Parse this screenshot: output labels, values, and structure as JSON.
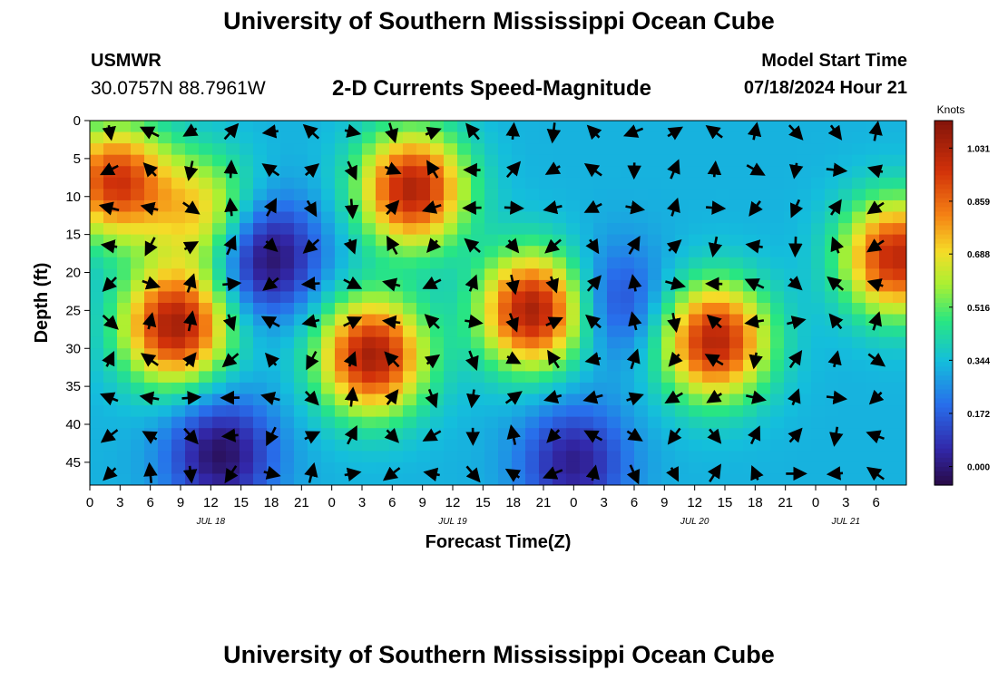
{
  "header": {
    "title": "University of Southern Mississippi Ocean Cube",
    "station": "USMWR",
    "coords": "30.0757N  88.7961W",
    "subtitle": "2-D Currents Speed-Magnitude",
    "start_label": "Model Start Time",
    "start_time": "07/18/2024 Hour 21"
  },
  "footer": {
    "title": "University of Southern Mississippi Ocean Cube"
  },
  "chart_data": {
    "type": "heatmap",
    "title": "2-D Currents Speed-Magnitude",
    "xlabel": "Forecast Time(Z)",
    "ylabel": "Depth (ft)",
    "x_range_hours": [
      0,
      81
    ],
    "y_range_ft": [
      0,
      48
    ],
    "x_ticks": [
      {
        "h": 0,
        "label": "0"
      },
      {
        "h": 3,
        "label": "3"
      },
      {
        "h": 6,
        "label": "6"
      },
      {
        "h": 9,
        "label": "9"
      },
      {
        "h": 12,
        "label": "12"
      },
      {
        "h": 15,
        "label": "15"
      },
      {
        "h": 18,
        "label": "18"
      },
      {
        "h": 21,
        "label": "21"
      },
      {
        "h": 24,
        "label": "0"
      },
      {
        "h": 27,
        "label": "3"
      },
      {
        "h": 30,
        "label": "6"
      },
      {
        "h": 33,
        "label": "9"
      },
      {
        "h": 36,
        "label": "12"
      },
      {
        "h": 39,
        "label": "15"
      },
      {
        "h": 42,
        "label": "18"
      },
      {
        "h": 45,
        "label": "21"
      },
      {
        "h": 48,
        "label": "0"
      },
      {
        "h": 51,
        "label": "3"
      },
      {
        "h": 54,
        "label": "6"
      },
      {
        "h": 57,
        "label": "9"
      },
      {
        "h": 60,
        "label": "12"
      },
      {
        "h": 63,
        "label": "15"
      },
      {
        "h": 66,
        "label": "18"
      },
      {
        "h": 69,
        "label": "21"
      },
      {
        "h": 72,
        "label": "0"
      },
      {
        "h": 75,
        "label": "3"
      },
      {
        "h": 78,
        "label": "6"
      }
    ],
    "y_ticks": [
      0,
      5,
      10,
      15,
      20,
      25,
      30,
      35,
      40,
      45
    ],
    "date_labels": [
      {
        "h": 12,
        "label": "JUL 18"
      },
      {
        "h": 36,
        "label": "JUL 19"
      },
      {
        "h": 60,
        "label": "JUL 20"
      },
      {
        "h": 75,
        "label": "JUL 21"
      }
    ],
    "colorbar": {
      "label": "Knots",
      "min": -0.06,
      "max": 1.12,
      "ticks": [
        0.0,
        0.172,
        0.344,
        0.516,
        0.688,
        0.859,
        1.031
      ],
      "tick_labels": [
        "0.000",
        "0.172",
        "0.344",
        "0.516",
        "0.688",
        "0.859",
        "1.031"
      ]
    },
    "grid": false,
    "speed_centers_knots": [
      {
        "name": "surface-early-plume",
        "h": 2.5,
        "d": 8,
        "speed": 0.95
      },
      {
        "name": "jul18-midwater-core",
        "h": 8.5,
        "d": 27,
        "speed": 1.05
      },
      {
        "name": "jul18-surface-tail",
        "h": 11,
        "d": 12,
        "speed": 0.7
      },
      {
        "name": "jul19-surface-core",
        "h": 32,
        "d": 9,
        "speed": 1.03
      },
      {
        "name": "jul19-midwater-core",
        "h": 28,
        "d": 31,
        "speed": 1.05
      },
      {
        "name": "jul19-night-core",
        "h": 44,
        "d": 25,
        "speed": 1.06
      },
      {
        "name": "jul20-midwater-core",
        "h": 62,
        "d": 29,
        "speed": 1.02
      },
      {
        "name": "jul21-right-edge",
        "h": 80,
        "d": 18,
        "speed": 1.0
      },
      {
        "name": "slack-18z-jul18",
        "h": 17.5,
        "d": 18,
        "speed": -0.05
      },
      {
        "name": "slack-bottom-13z",
        "h": 13,
        "d": 44,
        "speed": -0.03
      },
      {
        "name": "slack-bottom-jul20",
        "h": 48,
        "d": 45,
        "speed": 0.02
      },
      {
        "name": "slack-jul20-4z",
        "h": 52,
        "d": 24,
        "speed": 0.1
      }
    ],
    "vector_grid": {
      "h_start": 0,
      "h_step": 4,
      "d_values": [
        0,
        5,
        10,
        15,
        20,
        25,
        30,
        35,
        40,
        45
      ]
    }
  }
}
